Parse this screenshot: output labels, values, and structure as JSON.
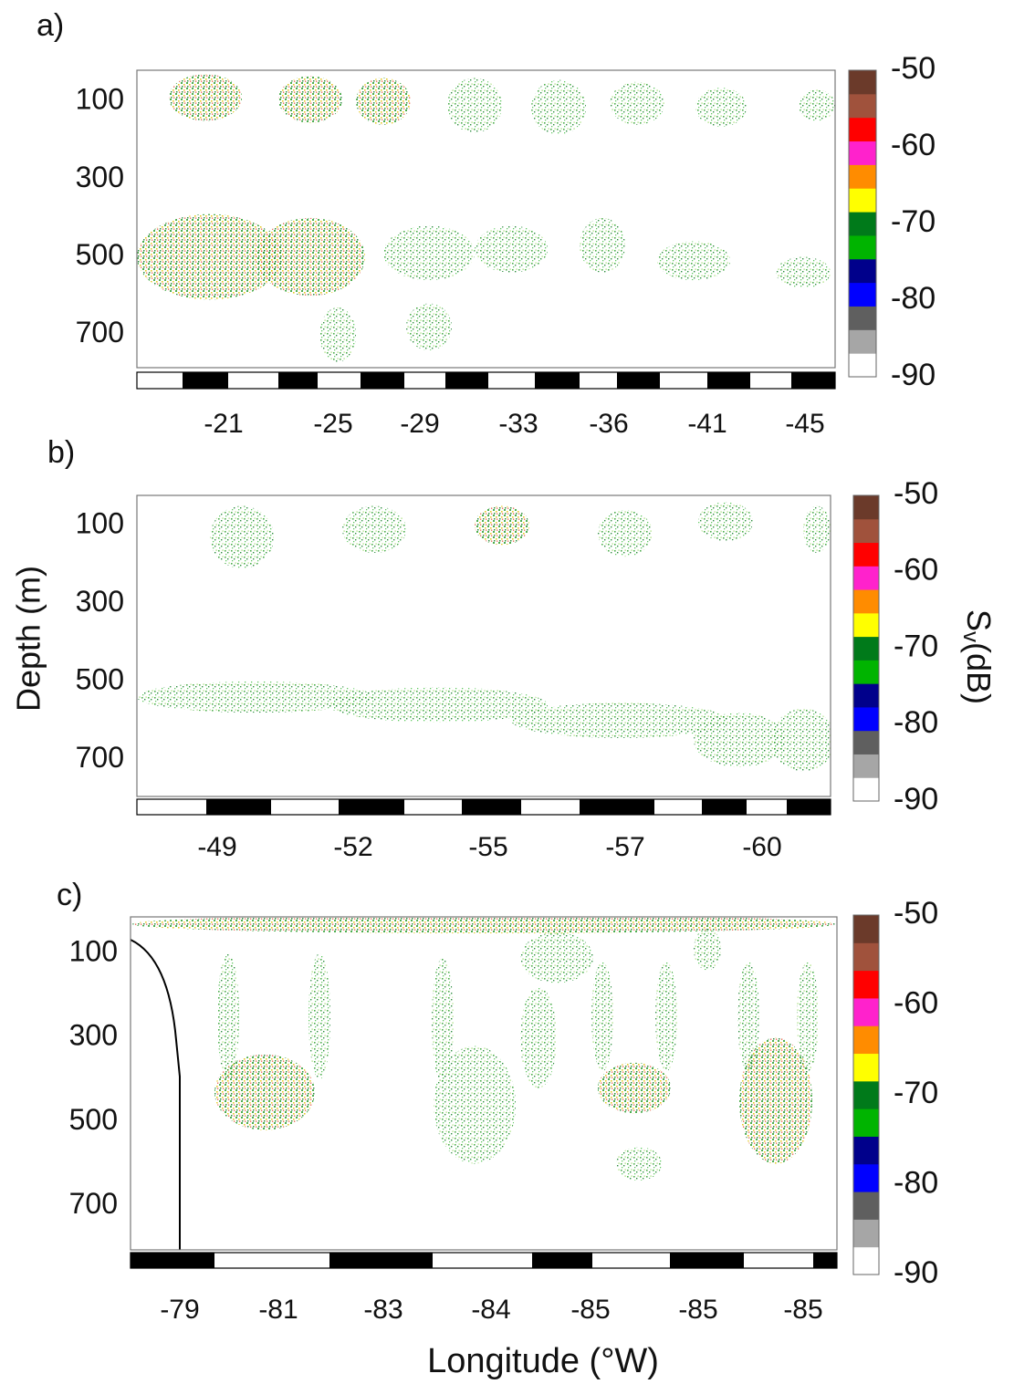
{
  "chart_data": [
    {
      "type": "echogram",
      "panel_label": "a)",
      "ylim": [
        20,
        785
      ],
      "yticks": [
        100,
        300,
        500,
        700
      ],
      "x_tick_labels": [
        "-21",
        "-25",
        "-29",
        "-33",
        "-36",
        "-41",
        "-45"
      ],
      "colorbar": {
        "lim": [
          -90,
          -50
        ],
        "ticks": [
          -50,
          -60,
          -70,
          -80,
          -90
        ],
        "colors": [
          "#ffffff",
          "#a6a6a6",
          "#5f5f5f",
          "#0000ff",
          "#00008b",
          "#00b400",
          "#007a1a",
          "#ffff00",
          "#ff8c00",
          "#ff22cc",
          "#ff0000",
          "#a0523c",
          "#6b3a2a"
        ]
      }
    },
    {
      "type": "echogram",
      "panel_label": "b)",
      "ylim": [
        23,
        795
      ],
      "yticks": [
        100,
        300,
        500,
        700
      ],
      "y_label": "Depth (m)",
      "x_tick_labels": [
        "-49",
        "-52",
        "-55",
        "-57",
        "-60"
      ],
      "colorbar": {
        "lim": [
          -90,
          -50
        ],
        "ticks": [
          -50,
          -60,
          -70,
          -80,
          -90
        ],
        "colors": [
          "#ffffff",
          "#a6a6a6",
          "#5f5f5f",
          "#0000ff",
          "#00008b",
          "#00b400",
          "#007a1a",
          "#ffff00",
          "#ff8c00",
          "#ff22cc",
          "#ff0000",
          "#a0523c",
          "#6b3a2a"
        ],
        "label": {
          "main": "S",
          "sub": "v",
          "unit": "(dB)"
        }
      }
    },
    {
      "type": "echogram",
      "panel_label": "c)",
      "ylim": [
        13,
        805
      ],
      "yticks": [
        100,
        300,
        500,
        700
      ],
      "x_tick_labels": [
        "-79",
        "-81",
        "-83",
        "-84",
        "-85",
        "-85",
        "-85"
      ],
      "x_label": "Longitude (°W)",
      "colorbar": {
        "lim": [
          -90,
          -50
        ],
        "ticks": [
          -50,
          -60,
          -70,
          -80,
          -90
        ],
        "colors": [
          "#ffffff",
          "#a6a6a6",
          "#5f5f5f",
          "#0000ff",
          "#00008b",
          "#00b400",
          "#007a1a",
          "#ffff00",
          "#ff8c00",
          "#ff22cc",
          "#ff0000",
          "#a0523c",
          "#6b3a2a"
        ]
      }
    }
  ]
}
